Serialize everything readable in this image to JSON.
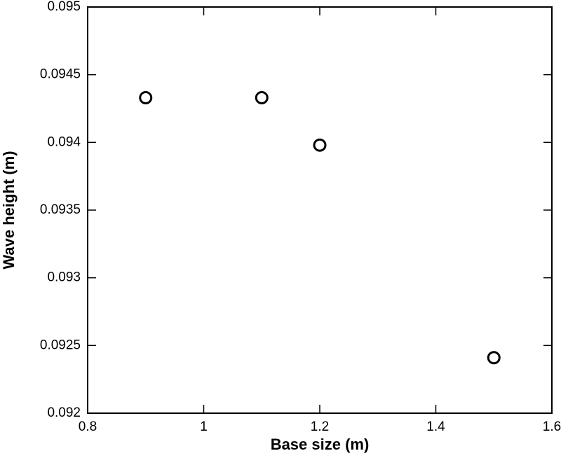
{
  "chart_data": {
    "type": "scatter",
    "x_label": "Base size (m)",
    "y_label": "Wave height (m)",
    "series": [
      {
        "color": "#000000",
        "x": [
          0.9,
          1.1,
          1.2,
          1.5
        ],
        "values": [
          0.09433,
          0.09433,
          0.09398,
          0.09241
        ]
      }
    ],
    "xlim": [
      0.8,
      1.6
    ],
    "xticks": [
      0.8,
      1,
      1.2,
      1.4,
      1.6
    ],
    "ylim": [
      0.092,
      0.095
    ],
    "yticks": [
      0.092,
      0.0925,
      0.093,
      0.0935,
      0.094,
      0.0945,
      0.095
    ],
    "grid": false
  }
}
